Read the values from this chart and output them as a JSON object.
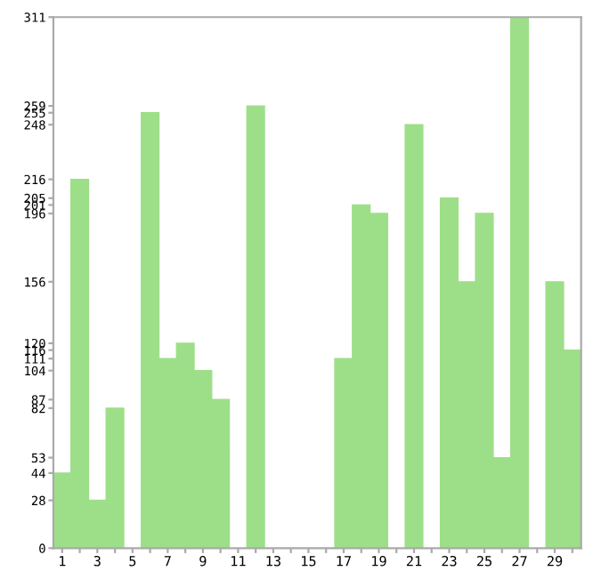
{
  "chart_data": {
    "type": "bar",
    "categories": [
      "1",
      null,
      "3",
      null,
      "5",
      null,
      "7",
      null,
      "9",
      null,
      "11",
      null,
      "13",
      null,
      "15",
      null,
      "17",
      null,
      "19",
      null,
      "21",
      null,
      "23",
      null,
      "25",
      null,
      "27",
      null,
      "29",
      null
    ],
    "values": [
      44,
      216,
      28,
      82,
      null,
      255,
      111,
      120,
      104,
      87,
      null,
      259,
      0,
      0,
      0,
      0,
      111,
      201,
      196,
      null,
      248,
      null,
      205,
      156,
      196,
      53,
      311,
      null,
      156,
      116
    ],
    "color": "#9ddf88",
    "ylim": [
      0,
      311
    ],
    "yticks": [
      0,
      28,
      44,
      53,
      82,
      87,
      104,
      111,
      116,
      120,
      156,
      196,
      201,
      205,
      216,
      248,
      255,
      259,
      311
    ],
    "grid": false
  }
}
